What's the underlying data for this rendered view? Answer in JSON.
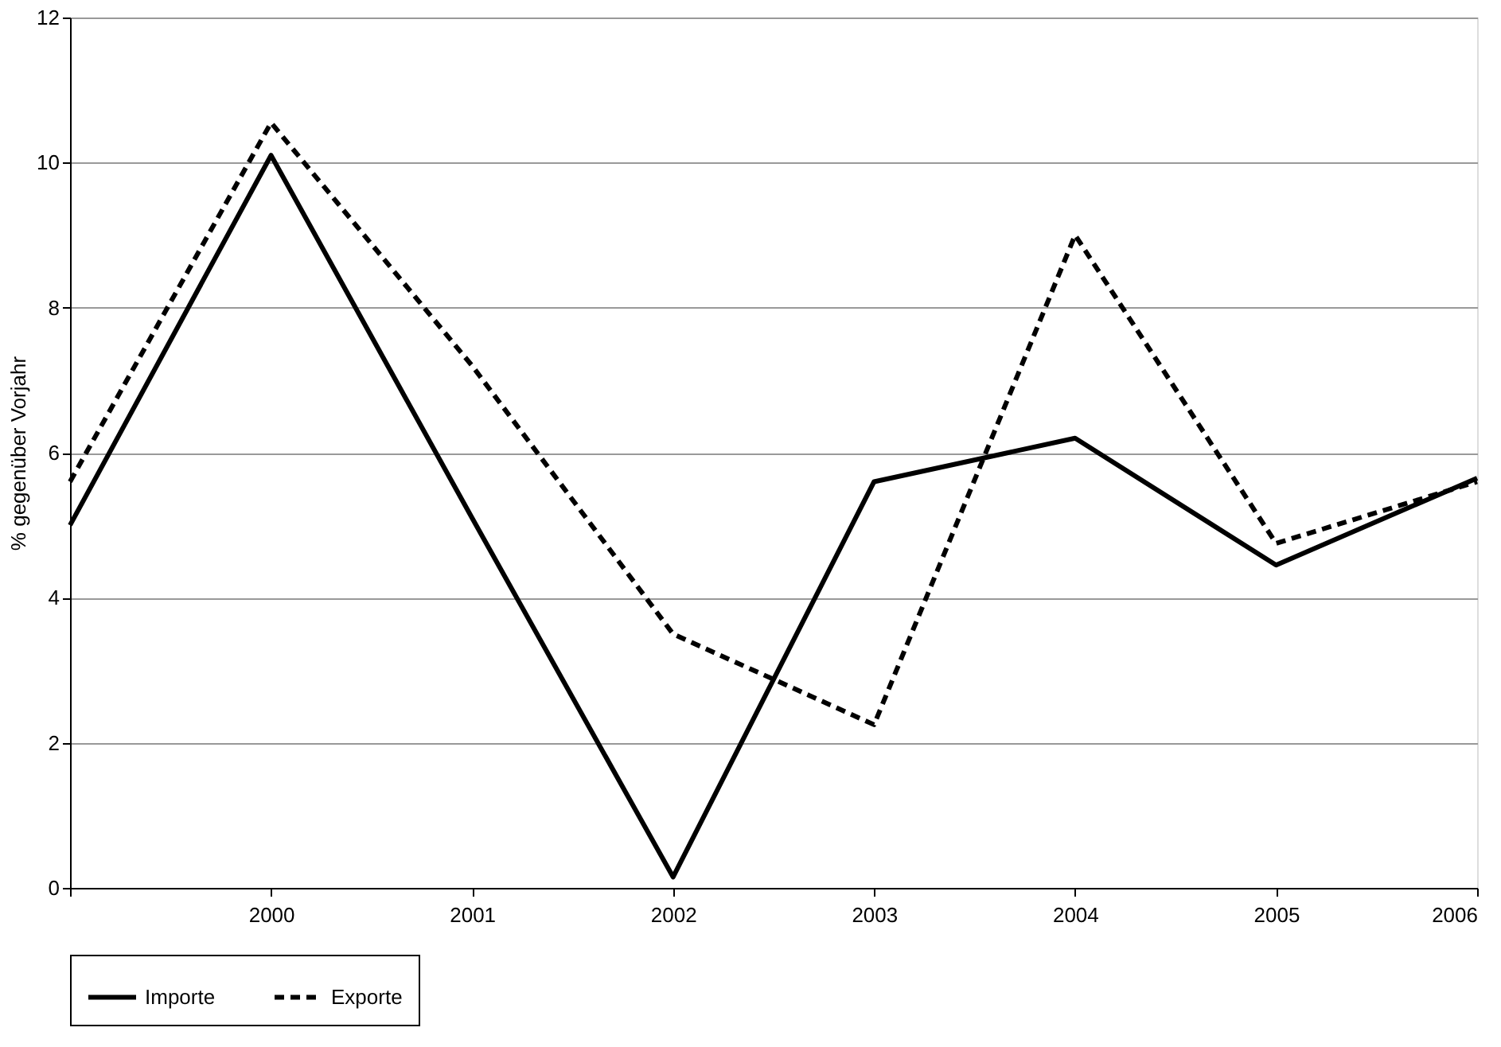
{
  "chart_data": {
    "type": "line",
    "ylabel": "% gegenüber Vorjahr",
    "categories": [
      null,
      "2000",
      "2001",
      "2002",
      "2003",
      "2004",
      "2005",
      "2006"
    ],
    "series": [
      {
        "name": "Importe",
        "color": "#000000",
        "line_style": "solid",
        "values": [
          5.0,
          10.1,
          5.1,
          0.15,
          5.6,
          6.2,
          4.45,
          5.65
        ]
      },
      {
        "name": "Exporte",
        "color": "#000000",
        "line_style": "dashed",
        "values": [
          5.6,
          10.55,
          7.2,
          3.5,
          2.25,
          9.0,
          4.75,
          5.6
        ]
      }
    ],
    "ylim": [
      0,
      12
    ],
    "yticks": [
      0,
      2,
      4,
      6,
      8,
      10,
      12
    ],
    "grid": "y",
    "legend": "bottom",
    "marker": "none"
  }
}
